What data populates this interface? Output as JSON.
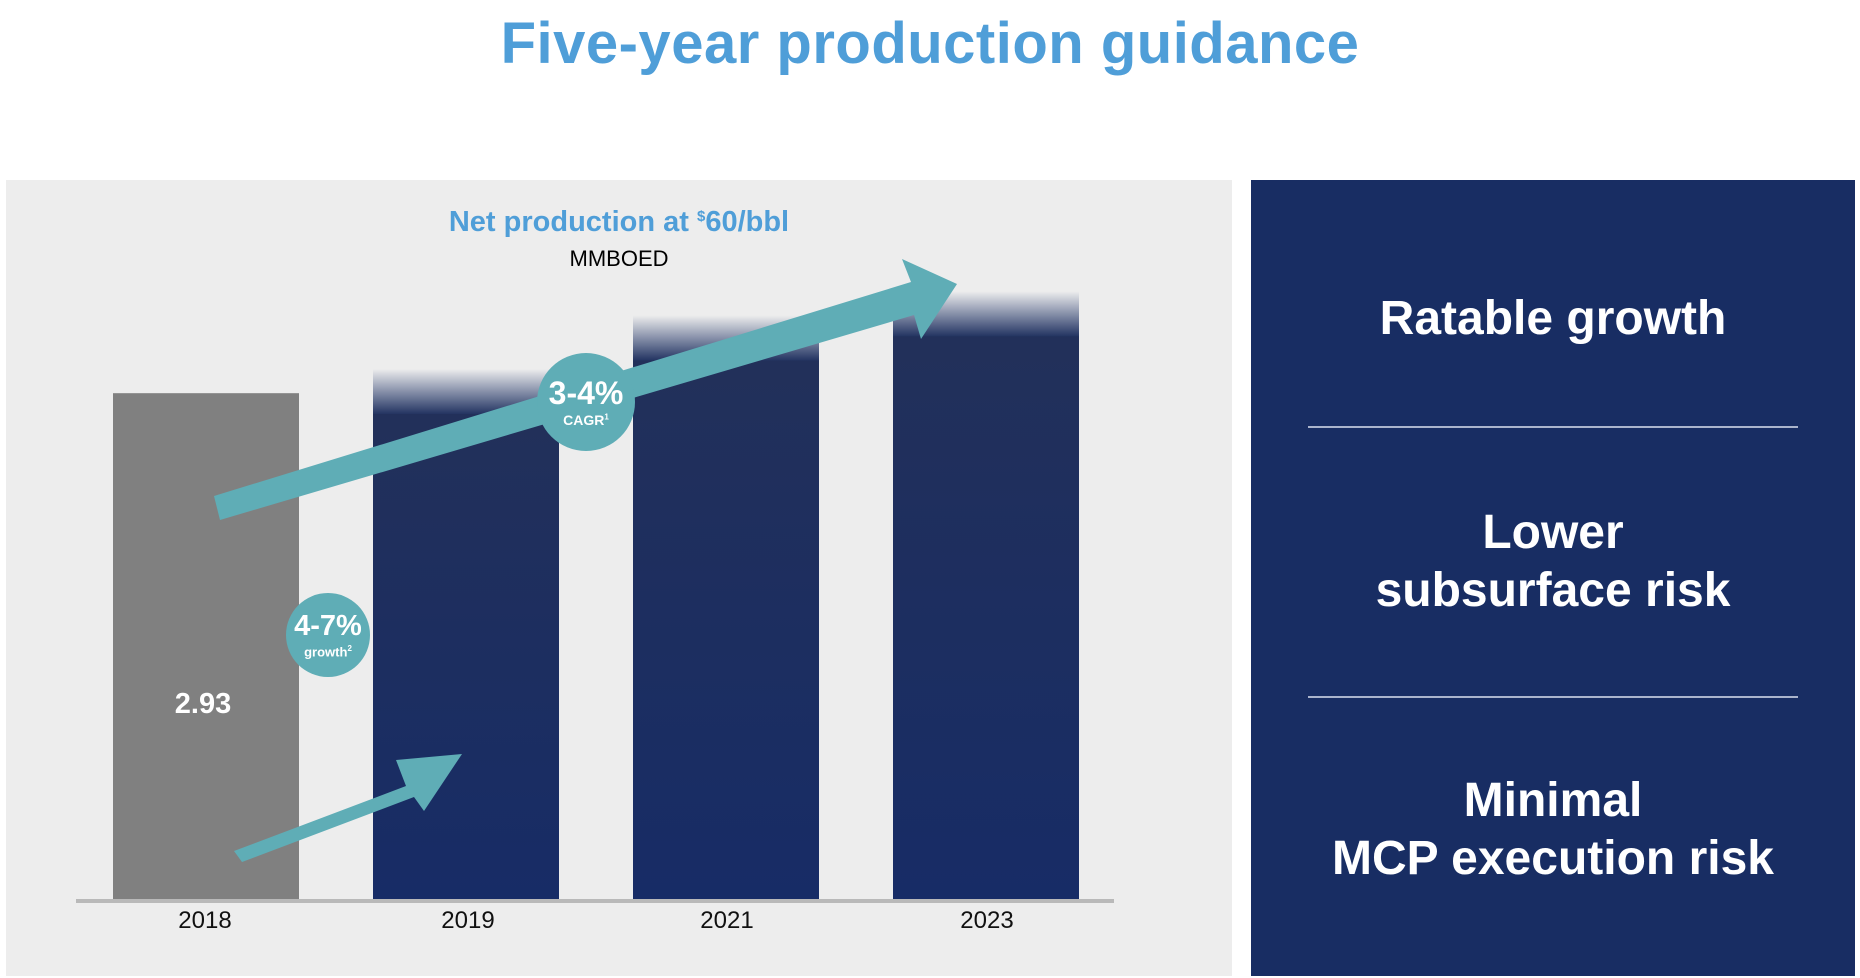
{
  "page": {
    "title": "Five-year production guidance"
  },
  "chart_data": {
    "type": "bar",
    "title_main": "Net production at ",
    "title_currency": "$",
    "title_value": "60/bbl",
    "subtitle": "MMBOED",
    "categories": [
      "2018",
      "2019",
      "2021",
      "2023"
    ],
    "values": [
      2.93,
      3.07,
      3.38,
      3.52
    ],
    "value_labels": [
      "2.93",
      null,
      null,
      null
    ],
    "ylim": [
      0,
      3.8
    ],
    "grid": false,
    "colors": {
      "actual": "#808080",
      "forecast": "#1a2f66",
      "arrow": "#5fadb6"
    },
    "annotations": [
      {
        "text": "4-7%",
        "subtext": "growth",
        "footnote": "2"
      },
      {
        "text": "3-4%",
        "subtext": "CAGR",
        "footnote": "1"
      }
    ]
  },
  "side_panel": {
    "items": [
      {
        "lines": [
          "Ratable growth"
        ]
      },
      {
        "lines": [
          "Lower",
          "subsurface risk"
        ]
      },
      {
        "lines": [
          "Minimal",
          "MCP execution risk"
        ]
      }
    ]
  }
}
